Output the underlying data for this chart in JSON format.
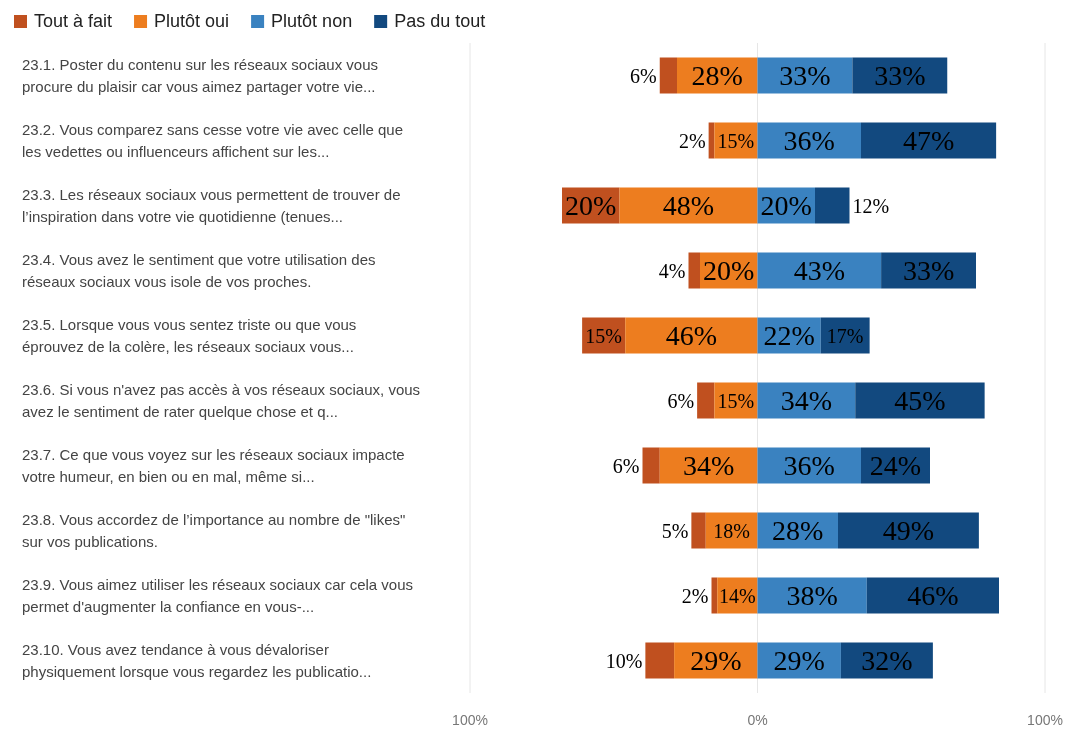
{
  "chart_data": {
    "type": "bar",
    "orientation": "horizontal",
    "categories": [
      "23.1. Poster du contenu sur les réseaux sociaux vous procure du plaisir car vous aimez partager votre vie...",
      "23.2. Vous comparez sans cesse votre vie avec celle que les vedettes ou influenceurs affichent sur les...",
      "23.3. Les réseaux sociaux vous permettent de trouver de l’inspiration dans votre vie quotidienne (tenues...",
      "23.4. Vous avez le sentiment que votre utilisation des réseaux sociaux vous isole de vos proches.",
      "23.5. Lorsque vous vous sentez triste ou que vous éprouvez de la colère, les réseaux sociaux vous...",
      "23.6. Si vous n'avez pas accès à vos réseaux sociaux, vous avez le sentiment de rater quelque chose et q...",
      "23.7. Ce que vous voyez sur les réseaux sociaux impacte votre humeur, en bien ou en mal, même si...",
      "23.8. Vous accordez de l’importance au nombre de \"likes\" sur vos publications.",
      "23.9. Vous aimez utiliser les réseaux sociaux car cela vous permet d'augmenter la confiance en vous-...",
      "23.10. Vous avez tendance à vous dévaloriser physiquement lorsque vous regardez les publicatio..."
    ],
    "series": [
      {
        "name": "Tout à fait",
        "color": "#c0501f",
        "values": [
          6,
          2,
          20,
          4,
          15,
          6,
          6,
          5,
          2,
          10
        ],
        "base": [
          -34,
          -17,
          -68,
          -24,
          -61,
          -21,
          -40,
          -23,
          -16,
          -39
        ],
        "value_labels": [
          "6%",
          "2%",
          "20%",
          "4%",
          "15%",
          "6%",
          "6%",
          "5%",
          "2%",
          "10%"
        ]
      },
      {
        "name": "Plutôt oui",
        "color": "#ed7d1f",
        "values": [
          28,
          15,
          48,
          20,
          46,
          15,
          34,
          18,
          14,
          29
        ],
        "base": [
          -28,
          -15,
          -48,
          -20,
          -46,
          -15,
          -34,
          -18,
          -14,
          -29
        ],
        "value_labels": [
          "28%",
          "15%",
          "48%",
          "20%",
          "46%",
          "15%",
          "34%",
          "18%",
          "14%",
          "29%"
        ]
      },
      {
        "name": "Plutôt non",
        "color": "#3a82c0",
        "values": [
          33,
          36,
          20,
          43,
          22,
          34,
          36,
          28,
          38,
          29
        ],
        "base": [
          0,
          0,
          0,
          0,
          0,
          0,
          0,
          0,
          0,
          0
        ],
        "value_labels": [
          "33%",
          "36%",
          "20%",
          "43%",
          "22%",
          "34%",
          "36%",
          "28%",
          "38%",
          "29%"
        ]
      },
      {
        "name": "Pas du tout",
        "color": "#12497f",
        "values": [
          33,
          47,
          12,
          33,
          17,
          45,
          24,
          49,
          46,
          32
        ],
        "base": [
          33,
          36,
          20,
          43,
          22,
          34,
          36,
          28,
          38,
          29
        ],
        "value_labels": [
          "33%",
          "47%",
          "12%",
          "33%",
          "17%",
          "45%",
          "24%",
          "49%",
          "46%",
          "32%"
        ]
      }
    ],
    "xlim": [
      -100,
      100
    ],
    "xticks": [
      {
        "value": -100,
        "label": "100%"
      },
      {
        "value": 0,
        "label": "0%"
      },
      {
        "value": 100,
        "label": "100%"
      }
    ],
    "grid": "x",
    "legend": "top left"
  }
}
